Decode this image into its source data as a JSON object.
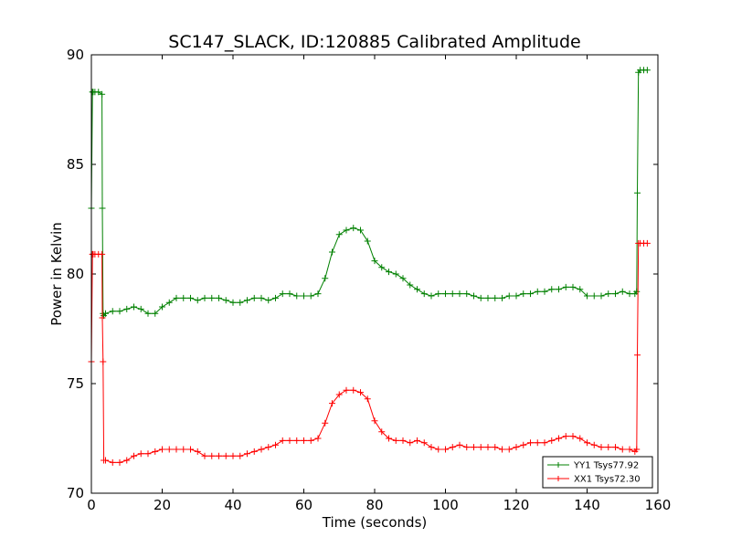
{
  "chart_data": {
    "type": "line",
    "title": "SC147_SLACK, ID:120885 Calibrated Amplitude",
    "xlabel": "Time (seconds)",
    "ylabel": "Power in Kelvin",
    "xlim": [
      0,
      160
    ],
    "ylim": [
      70,
      90
    ],
    "xticks": [
      "0",
      "20",
      "40",
      "60",
      "80",
      "100",
      "120",
      "140",
      "160"
    ],
    "yticks": [
      "70",
      "75",
      "80",
      "85",
      "90"
    ],
    "grid": false,
    "legend_position": "bottom-right",
    "marker": "+",
    "series": [
      {
        "name": "YY1 Tsys77.92",
        "color": "#008000",
        "x": [
          0,
          0.3,
          0.5,
          1,
          2,
          3,
          3.1,
          3.3,
          3.5,
          4,
          6,
          8,
          10,
          12,
          14,
          16,
          18,
          20,
          22,
          24,
          26,
          28,
          30,
          32,
          34,
          36,
          38,
          40,
          42,
          44,
          46,
          48,
          50,
          52,
          54,
          56,
          58,
          60,
          62,
          64,
          66,
          68,
          70,
          72,
          74,
          76,
          78,
          80,
          82,
          84,
          86,
          88,
          90,
          92,
          94,
          96,
          98,
          100,
          102,
          104,
          106,
          108,
          110,
          112,
          114,
          116,
          118,
          120,
          122,
          124,
          126,
          128,
          130,
          132,
          134,
          136,
          138,
          140,
          142,
          144,
          146,
          148,
          150,
          152,
          153.5,
          154,
          154.2,
          154.5,
          155,
          156,
          157
        ],
        "y": [
          83.0,
          88.3,
          88.3,
          88.3,
          88.3,
          88.2,
          83.0,
          78.2,
          78.1,
          78.2,
          78.3,
          78.3,
          78.4,
          78.5,
          78.4,
          78.2,
          78.2,
          78.5,
          78.7,
          78.9,
          78.9,
          78.9,
          78.8,
          78.9,
          78.9,
          78.9,
          78.8,
          78.7,
          78.7,
          78.8,
          78.9,
          78.9,
          78.8,
          78.9,
          79.1,
          79.1,
          79.0,
          79.0,
          79.0,
          79.1,
          79.8,
          81.0,
          81.8,
          82.0,
          82.1,
          82.0,
          81.5,
          80.6,
          80.3,
          80.1,
          80.0,
          79.8,
          79.5,
          79.3,
          79.1,
          79.0,
          79.1,
          79.1,
          79.1,
          79.1,
          79.1,
          79.0,
          78.9,
          78.9,
          78.9,
          78.9,
          79.0,
          79.0,
          79.1,
          79.1,
          79.2,
          79.2,
          79.3,
          79.3,
          79.4,
          79.4,
          79.3,
          79.0,
          79.0,
          79.0,
          79.1,
          79.1,
          79.2,
          79.1,
          79.1,
          79.2,
          83.7,
          89.2,
          89.3,
          89.3,
          89.3
        ]
      },
      {
        "name": "XX1 Tsys72.30",
        "color": "#ff0000",
        "x": [
          0,
          0.3,
          0.5,
          1,
          2,
          3,
          3.1,
          3.3,
          3.5,
          4,
          6,
          8,
          10,
          12,
          14,
          16,
          18,
          20,
          22,
          24,
          26,
          28,
          30,
          32,
          34,
          36,
          38,
          40,
          42,
          44,
          46,
          48,
          50,
          52,
          54,
          56,
          58,
          60,
          62,
          64,
          66,
          68,
          70,
          72,
          74,
          76,
          78,
          80,
          82,
          84,
          86,
          88,
          90,
          92,
          94,
          96,
          98,
          100,
          102,
          104,
          106,
          108,
          110,
          112,
          114,
          116,
          118,
          120,
          122,
          124,
          126,
          128,
          130,
          132,
          134,
          136,
          138,
          140,
          142,
          144,
          146,
          148,
          150,
          152,
          153.5,
          154,
          154.2,
          154.5,
          155,
          156,
          157
        ],
        "y": [
          76.0,
          80.9,
          80.9,
          80.9,
          80.9,
          80.9,
          78.0,
          76.0,
          71.5,
          71.5,
          71.4,
          71.4,
          71.5,
          71.7,
          71.8,
          71.8,
          71.9,
          72.0,
          72.0,
          72.0,
          72.0,
          72.0,
          71.9,
          71.7,
          71.7,
          71.7,
          71.7,
          71.7,
          71.7,
          71.8,
          71.9,
          72.0,
          72.1,
          72.2,
          72.4,
          72.4,
          72.4,
          72.4,
          72.4,
          72.5,
          73.2,
          74.1,
          74.5,
          74.7,
          74.7,
          74.6,
          74.3,
          73.3,
          72.8,
          72.5,
          72.4,
          72.4,
          72.3,
          72.4,
          72.3,
          72.1,
          72.0,
          72.0,
          72.1,
          72.2,
          72.1,
          72.1,
          72.1,
          72.1,
          72.1,
          72.0,
          72.0,
          72.1,
          72.2,
          72.3,
          72.3,
          72.3,
          72.4,
          72.5,
          72.6,
          72.6,
          72.5,
          72.3,
          72.2,
          72.1,
          72.1,
          72.1,
          72.0,
          72.0,
          71.9,
          72.0,
          76.3,
          81.4,
          81.4,
          81.4,
          81.4
        ]
      }
    ]
  }
}
